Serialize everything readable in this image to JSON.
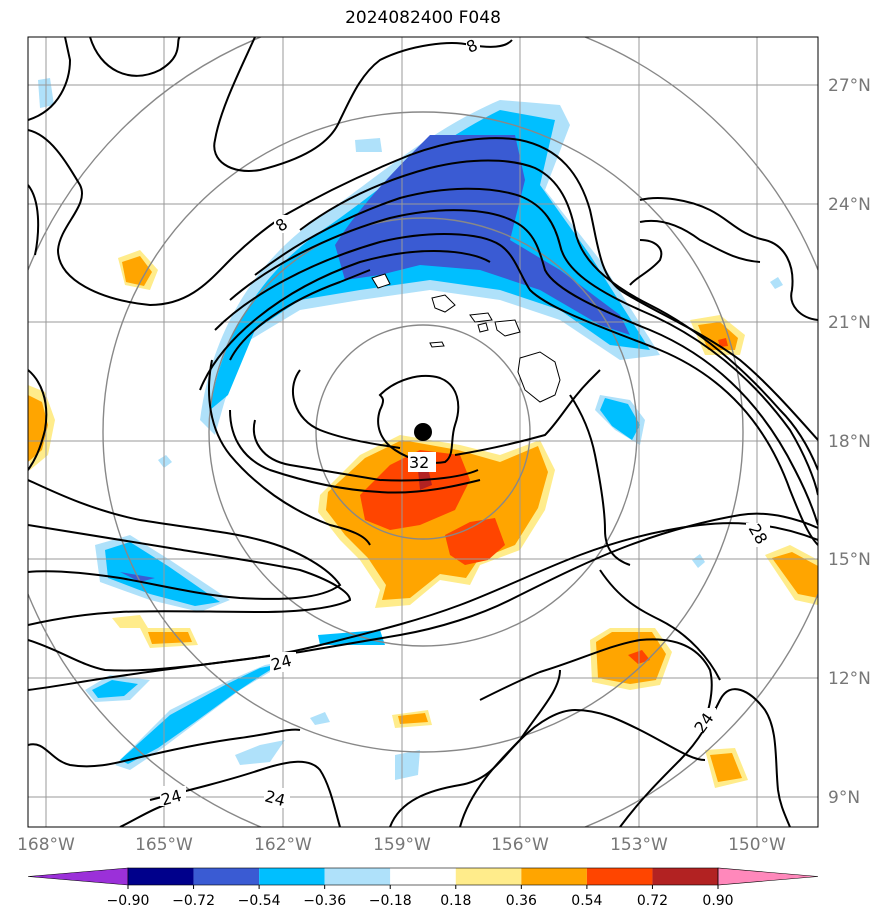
{
  "title": "2024082400 F048",
  "map": {
    "lat_labels": [
      "27°N",
      "24°N",
      "21°N",
      "18°N",
      "15°N",
      "12°N",
      "9°N"
    ],
    "lon_labels": [
      "168°W",
      "165°W",
      "162°W",
      "159°W",
      "156°W",
      "153°W",
      "150°W"
    ],
    "contour_labels": [
      "8",
      "8",
      "32",
      "28",
      "24",
      "24",
      "24",
      "24"
    ],
    "center_marker": "storm-center",
    "colors": {
      "contour": "#000000",
      "grid": "#999999",
      "range_rings": "#888888"
    }
  },
  "colorbar": {
    "ticks": [
      "−0.90",
      "−0.72",
      "−0.54",
      "−0.36",
      "−0.18",
      "0.18",
      "0.36",
      "0.54",
      "0.72",
      "0.90"
    ],
    "colors": [
      "#9b30d9",
      "#00008b",
      "#3a5bd3",
      "#00bfff",
      "#afe1fa",
      "#ffffff",
      "#ffec8b",
      "#ffa500",
      "#ff4500",
      "#b22222",
      "#ff88bb"
    ]
  }
}
